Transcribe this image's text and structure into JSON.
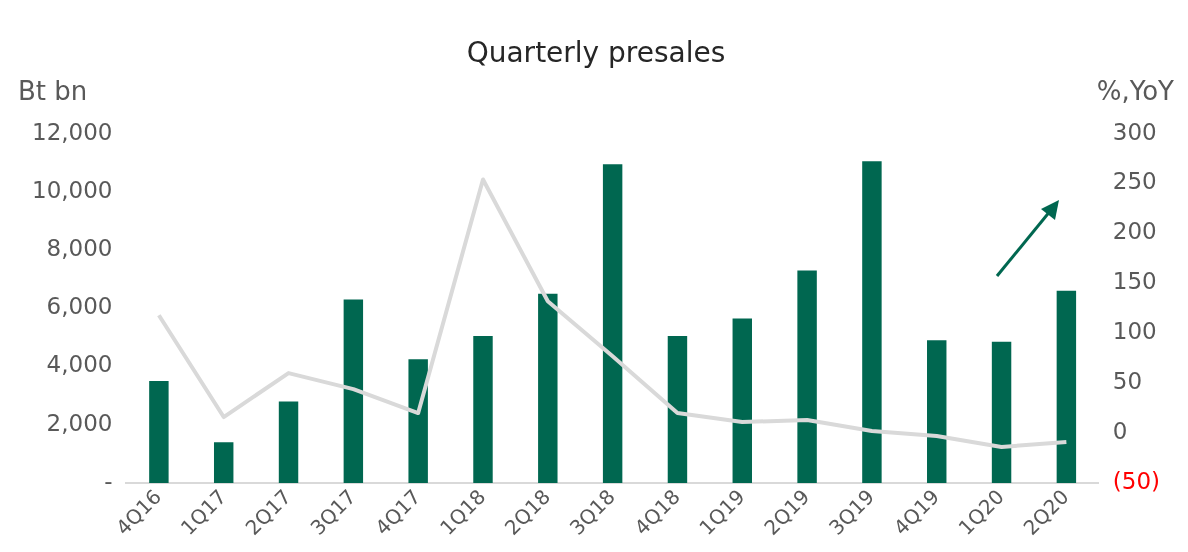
{
  "chart_data": {
    "type": "bar",
    "title": "Quarterly presales",
    "ylabel": "Bt bn",
    "y2label": "%,YoY",
    "categories": [
      "4Q16",
      "1Q17",
      "2Q17",
      "3Q17",
      "4Q17",
      "1Q18",
      "2Q18",
      "3Q18",
      "4Q18",
      "1Q19",
      "2Q19",
      "3Q19",
      "4Q19",
      "1Q20",
      "2Q20"
    ],
    "series": [
      {
        "color": "#006750",
        "values": [
          3500,
          1400,
          2800,
          6300,
          4250,
          5050,
          6500,
          10950,
          5050,
          5650,
          7300,
          11050,
          4900,
          4850,
          6600
        ]
      },
      {
        "type": "line",
        "axis": "y2",
        "color": "#d9d9d9",
        "values": [
          118,
          16,
          60,
          44,
          20,
          254,
          132,
          77,
          20,
          11,
          13,
          2,
          -3,
          -14,
          -9
        ]
      }
    ],
    "ylim": [
      0,
      12000
    ],
    "yticks": [
      {
        "value": 0,
        "label": "-"
      },
      {
        "value": 2000,
        "label": "2,000"
      },
      {
        "value": 4000,
        "label": "4,000"
      },
      {
        "value": 6000,
        "label": "6,000"
      },
      {
        "value": 8000,
        "label": "8,000"
      },
      {
        "value": 10000,
        "label": "10,000"
      },
      {
        "value": 12000,
        "label": "12,000"
      }
    ],
    "y2lim": [
      -50,
      300
    ],
    "y2ticks": [
      {
        "value": -50,
        "label": "(50)"
      },
      0,
      50,
      100,
      150,
      200,
      250,
      300
    ],
    "grid": false,
    "legend": false,
    "marker": "none"
  }
}
